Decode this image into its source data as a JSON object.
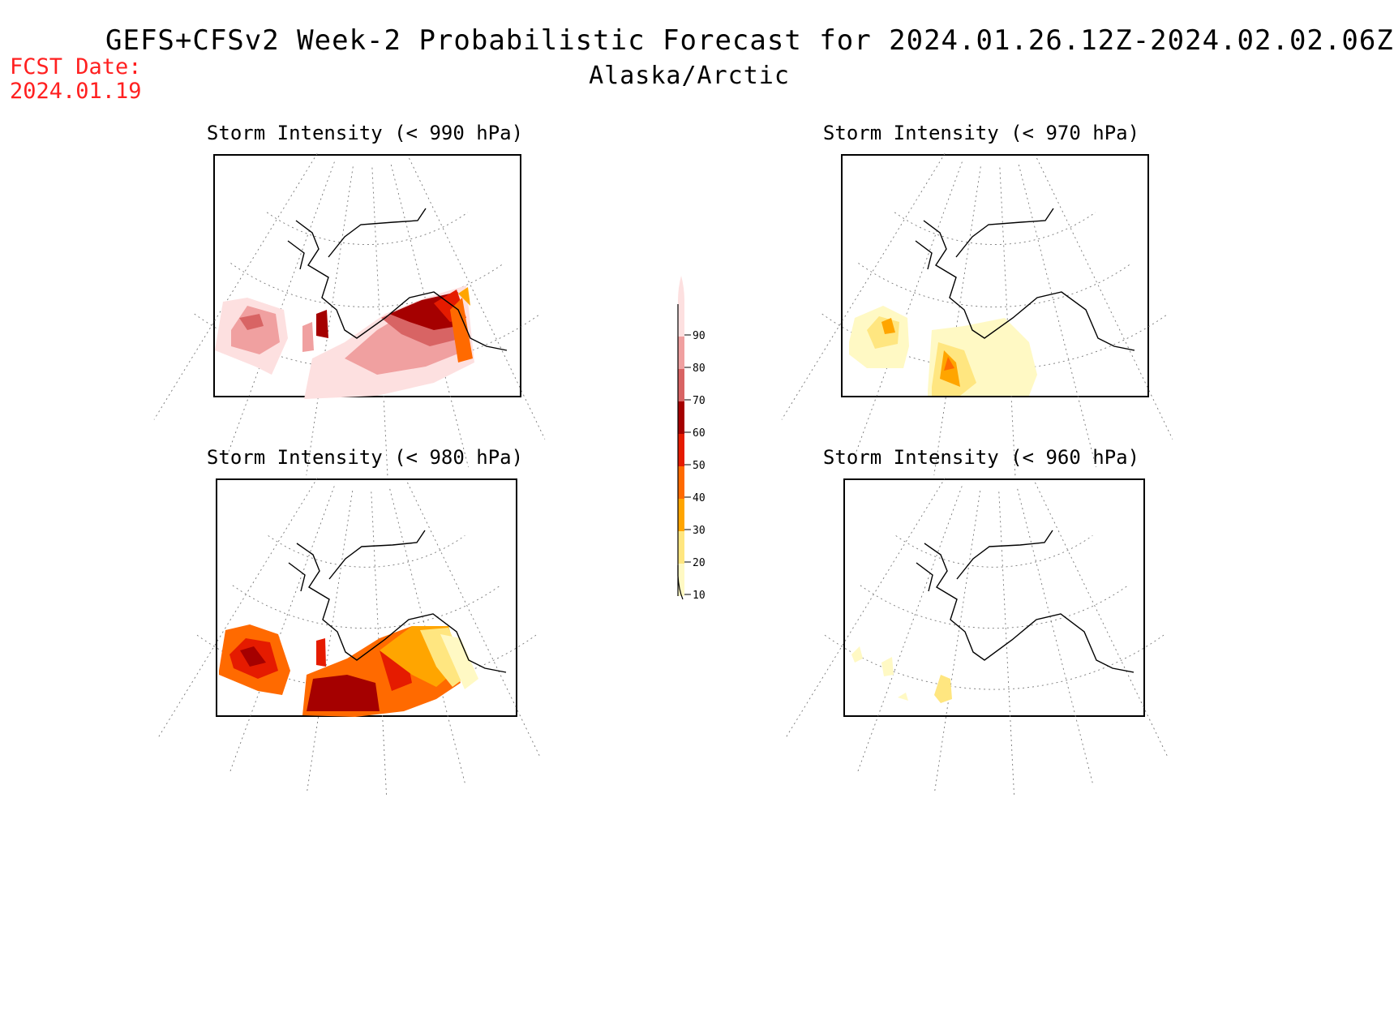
{
  "header": {
    "title": "GEFS+CFSv2 Week-2 Probabilistic Forecast for 2024.01.26.12Z-2024.02.02.06Z",
    "subtitle": "Alaska/Arctic",
    "fcst_label": "FCST Date:",
    "fcst_date": "2024.01.19"
  },
  "panels": [
    {
      "id": "p990",
      "title": "Storm Intensity (< 990 hPa)"
    },
    {
      "id": "p970",
      "title": "Storm Intensity (< 970 hPa)"
    },
    {
      "id": "p980",
      "title": "Storm Intensity (< 980 hPa)"
    },
    {
      "id": "p960",
      "title": "Storm Intensity (< 960 hPa)"
    }
  ],
  "legend": {
    "levels": [
      "10",
      "20",
      "30",
      "40",
      "50",
      "60",
      "70",
      "80",
      "90"
    ],
    "colors": [
      "#fff9c4",
      "#ffe680",
      "#ffa500",
      "#ff6a00",
      "#e51b00",
      "#a50000",
      "#d86464",
      "#f0a0a0",
      "#fde0e0"
    ]
  }
}
